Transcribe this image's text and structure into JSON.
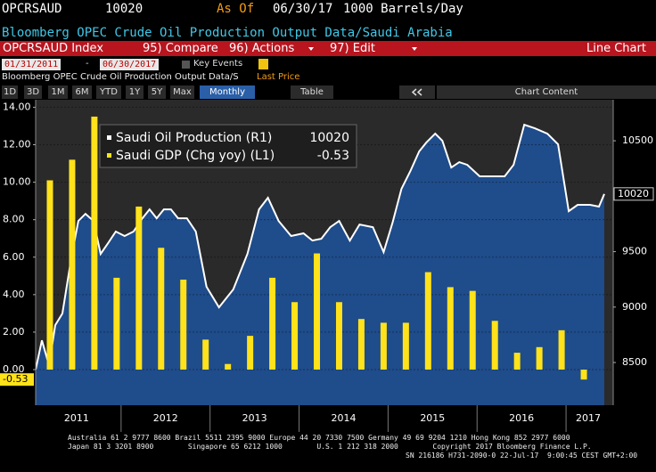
{
  "header": {
    "ticker": "OPCRSAUD",
    "last": "10020",
    "as_of": "As Of",
    "date": "06/30/17",
    "units": "1000 Barrels/Day",
    "description": "Bloomberg OPEC Crude Oil Production Output Data/Saudi Arabia"
  },
  "toolbar": {
    "security": "OPCRSAUD Index",
    "menus": [
      "95) Compare",
      "96) Actions",
      "97) Edit"
    ],
    "chart_type": "Line Chart"
  },
  "range": {
    "start": "01/31/2011",
    "separator": "-",
    "end": "06/30/2017",
    "key_events": "Key Events",
    "security_line": "Bloomberg OPEC Crude Oil Production Output Data/S",
    "field": "Last Price"
  },
  "periods": [
    "1D",
    "3D",
    "1M",
    "6M",
    "YTD",
    "1Y",
    "5Y",
    "Max"
  ],
  "frequency": "Monthly",
  "table": "Table",
  "chart_content": "Chart Content",
  "chart_data": {
    "type": "combo",
    "xlim": [
      2011.04,
      2017.53
    ],
    "xticks": [
      {
        "value": 2011.5,
        "label": "2011"
      },
      {
        "value": 2012.5,
        "label": "2012"
      },
      {
        "value": 2013.5,
        "label": "2013"
      },
      {
        "value": 2014.5,
        "label": "2014"
      },
      {
        "value": 2015.5,
        "label": "2015"
      },
      {
        "value": 2016.5,
        "label": "2016"
      },
      {
        "value": 2017.25,
        "label": "2017"
      }
    ],
    "ylim": [
      -1.9,
      14.4
    ],
    "yticks": [
      {
        "value": 0,
        "label": "0.00"
      },
      {
        "value": 2,
        "label": "2.00"
      },
      {
        "value": 4,
        "label": "4.00"
      },
      {
        "value": 6,
        "label": "6.00"
      },
      {
        "value": 8,
        "label": "8.00"
      },
      {
        "value": 10,
        "label": "10.00"
      },
      {
        "value": 12,
        "label": "12.00"
      },
      {
        "value": 14,
        "label": "14.00"
      }
    ],
    "y2lim": [
      8115,
      10870
    ],
    "y2ticks": [
      8500,
      9000,
      9500,
      10500
    ],
    "grid": true,
    "series": [
      {
        "name": "Saudi Oil Production (R1)",
        "type": "area",
        "axis": "y2",
        "color": "#ffffff",
        "fill": "#1f4c8a",
        "last_label": "10020",
        "x": [
          2011.04,
          2011.11,
          2011.19,
          2011.26,
          2011.34,
          2011.44,
          2011.52,
          2011.6,
          2011.69,
          2011.77,
          2011.86,
          2011.94,
          2012.04,
          2012.14,
          2012.24,
          2012.32,
          2012.4,
          2012.48,
          2012.56,
          2012.64,
          2012.74,
          2012.84,
          2012.96,
          2013.1,
          2013.26,
          2013.42,
          2013.55,
          2013.65,
          2013.77,
          2013.91,
          2014.05,
          2014.15,
          2014.25,
          2014.35,
          2014.45,
          2014.57,
          2014.68,
          2014.83,
          2014.95,
          2015.05,
          2015.15,
          2015.25,
          2015.35,
          2015.43,
          2015.53,
          2015.61,
          2015.71,
          2015.8,
          2015.89,
          2016.03,
          2016.17,
          2016.31,
          2016.41,
          2016.53,
          2016.65,
          2016.79,
          2016.91,
          2017.03,
          2017.13,
          2017.27,
          2017.37,
          2017.43
        ],
        "values": [
          8436,
          8700,
          8476,
          8837,
          8942,
          9440,
          9777,
          9841,
          9777,
          9480,
          9584,
          9681,
          9641,
          9681,
          9801,
          9881,
          9801,
          9881,
          9881,
          9801,
          9801,
          9681,
          9183,
          8998,
          9159,
          9480,
          9881,
          9986,
          9777,
          9641,
          9665,
          9600,
          9616,
          9721,
          9777,
          9600,
          9745,
          9721,
          9496,
          9761,
          10066,
          10227,
          10404,
          10484,
          10564,
          10500,
          10259,
          10307,
          10283,
          10179,
          10179,
          10179,
          10283,
          10645,
          10612,
          10564,
          10468,
          9865,
          9922,
          9922,
          9906,
          10020
        ]
      },
      {
        "name": "Saudi GDP (Chg yoy) (L1)",
        "type": "bar",
        "color": "#ffe21a",
        "last_label": "-0.53",
        "x": [
          2011.2,
          2011.45,
          2011.7,
          2011.95,
          2012.2,
          2012.45,
          2012.7,
          2012.95,
          2013.2,
          2013.45,
          2013.7,
          2013.95,
          2014.2,
          2014.45,
          2014.7,
          2014.95,
          2015.2,
          2015.45,
          2015.7,
          2015.95,
          2016.2,
          2016.45,
          2016.7,
          2016.95,
          2017.2
        ],
        "values": [
          10.1,
          11.2,
          13.5,
          4.9,
          8.7,
          6.5,
          4.8,
          1.6,
          0.3,
          1.8,
          4.9,
          3.6,
          6.2,
          3.6,
          2.7,
          2.5,
          2.5,
          5.2,
          4.4,
          4.2,
          2.6,
          0.9,
          1.2,
          2.1,
          -0.53
        ]
      }
    ]
  },
  "footer": [
    "Australia 61 2 9777 8600 Brazil 5511 2395 9000 Europe 44 20 7330 7500 Germany 49 69 9204 1210 Hong Kong 852 2977 6000",
    "Japan 81 3 3201 8900        Singapore 65 6212 1000        U.S. 1 212 318 2000        Copyright 2017 Bloomberg Finance L.P.",
    "SN 216186 H731-2090-0 22-Jul-17  9:00:45 CEST GMT+2:00"
  ]
}
